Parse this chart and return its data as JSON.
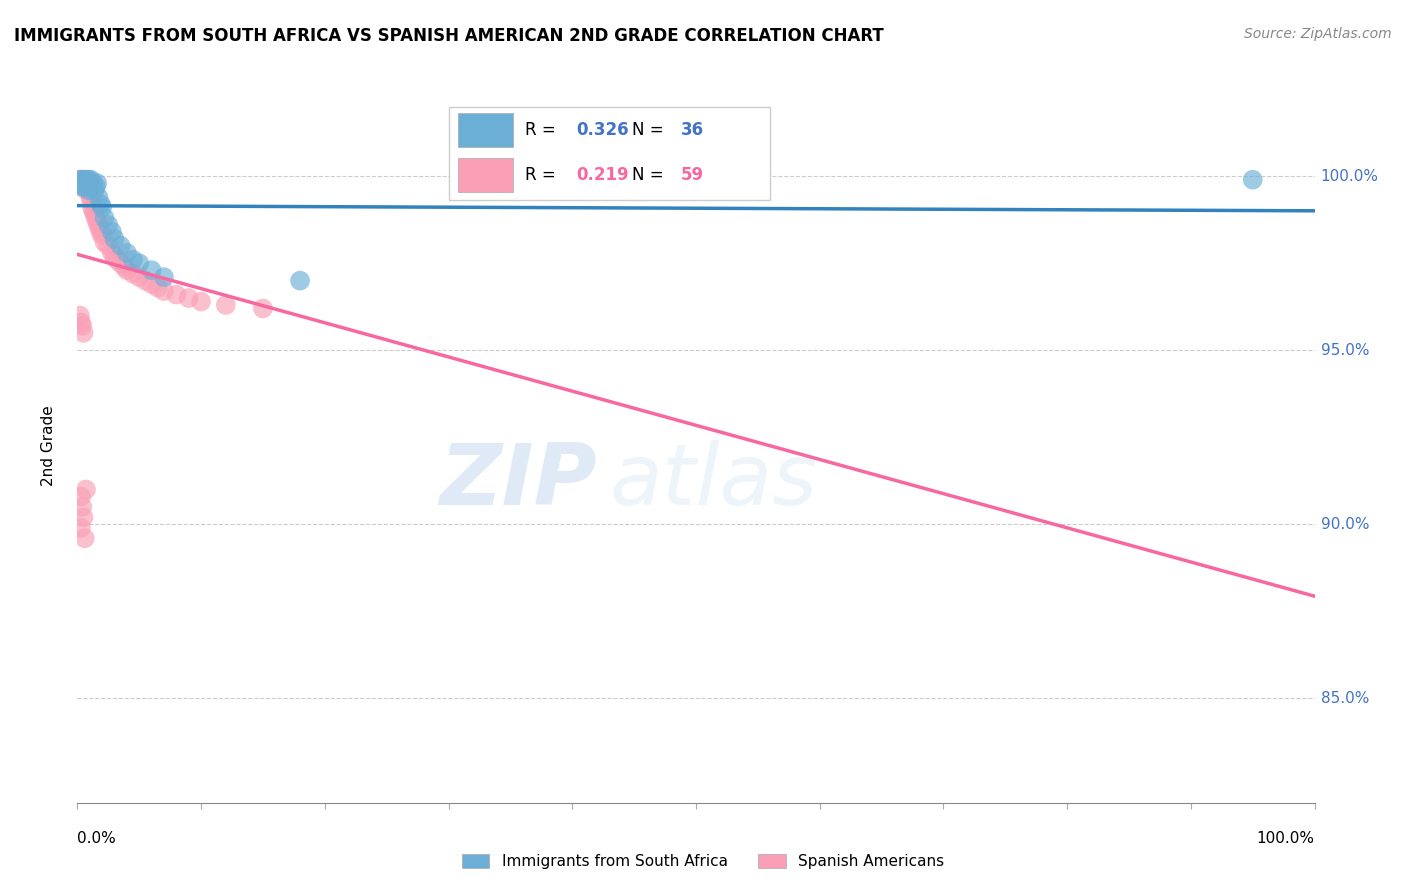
{
  "title": "IMMIGRANTS FROM SOUTH AFRICA VS SPANISH AMERICAN 2ND GRADE CORRELATION CHART",
  "source": "Source: ZipAtlas.com",
  "ylabel": "2nd Grade",
  "ytick_labels": [
    "100.0%",
    "95.0%",
    "90.0%",
    "85.0%"
  ],
  "ytick_values": [
    1.0,
    0.95,
    0.9,
    0.85
  ],
  "xlim": [
    0.0,
    1.0
  ],
  "ylim": [
    0.82,
    1.025
  ],
  "legend_r1": "0.326",
  "legend_n1": "36",
  "legend_r2": "0.219",
  "legend_n2": "59",
  "color_blue": "#6baed6",
  "color_pink": "#fa9fb5",
  "line_color_blue": "#3182bd",
  "line_color_pink": "#f768a1",
  "background_color": "#ffffff",
  "watermark_zip": "ZIP",
  "watermark_atlas": "atlas",
  "blue_scatter_x": [
    0.002,
    0.003,
    0.004,
    0.004,
    0.005,
    0.005,
    0.006,
    0.006,
    0.007,
    0.008,
    0.008,
    0.009,
    0.009,
    0.01,
    0.01,
    0.011,
    0.012,
    0.013,
    0.014,
    0.015,
    0.016,
    0.017,
    0.019,
    0.02,
    0.022,
    0.025,
    0.028,
    0.03,
    0.035,
    0.04,
    0.045,
    0.05,
    0.06,
    0.07,
    0.95,
    0.18
  ],
  "blue_scatter_y": [
    0.999,
    0.998,
    0.999,
    0.997,
    0.998,
    0.999,
    0.997,
    0.998,
    0.999,
    0.998,
    0.997,
    0.999,
    0.996,
    0.998,
    0.997,
    0.999,
    0.997,
    0.998,
    0.996,
    0.997,
    0.998,
    0.994,
    0.992,
    0.991,
    0.988,
    0.986,
    0.984,
    0.982,
    0.98,
    0.978,
    0.976,
    0.975,
    0.973,
    0.971,
    0.999,
    0.97
  ],
  "pink_scatter_x": [
    0.001,
    0.002,
    0.002,
    0.003,
    0.003,
    0.004,
    0.004,
    0.005,
    0.005,
    0.006,
    0.006,
    0.007,
    0.007,
    0.008,
    0.008,
    0.009,
    0.009,
    0.01,
    0.01,
    0.011,
    0.011,
    0.012,
    0.013,
    0.014,
    0.015,
    0.016,
    0.017,
    0.018,
    0.019,
    0.02,
    0.022,
    0.025,
    0.028,
    0.03,
    0.032,
    0.035,
    0.038,
    0.04,
    0.045,
    0.05,
    0.055,
    0.06,
    0.065,
    0.07,
    0.08,
    0.09,
    0.1,
    0.12,
    0.15,
    0.002,
    0.003,
    0.004,
    0.005,
    0.006,
    0.007,
    0.003,
    0.004,
    0.005,
    0.003
  ],
  "pink_scatter_y": [
    0.999,
    0.999,
    0.998,
    0.999,
    0.998,
    0.999,
    0.997,
    0.998,
    0.999,
    0.998,
    0.997,
    0.999,
    0.996,
    0.998,
    0.997,
    0.999,
    0.996,
    0.998,
    0.997,
    0.994,
    0.993,
    0.991,
    0.99,
    0.989,
    0.988,
    0.987,
    0.986,
    0.985,
    0.984,
    0.983,
    0.981,
    0.98,
    0.978,
    0.977,
    0.976,
    0.975,
    0.974,
    0.973,
    0.972,
    0.971,
    0.97,
    0.969,
    0.968,
    0.967,
    0.966,
    0.965,
    0.964,
    0.963,
    0.962,
    0.96,
    0.958,
    0.957,
    0.955,
    0.896,
    0.91,
    0.908,
    0.905,
    0.902,
    0.899
  ]
}
